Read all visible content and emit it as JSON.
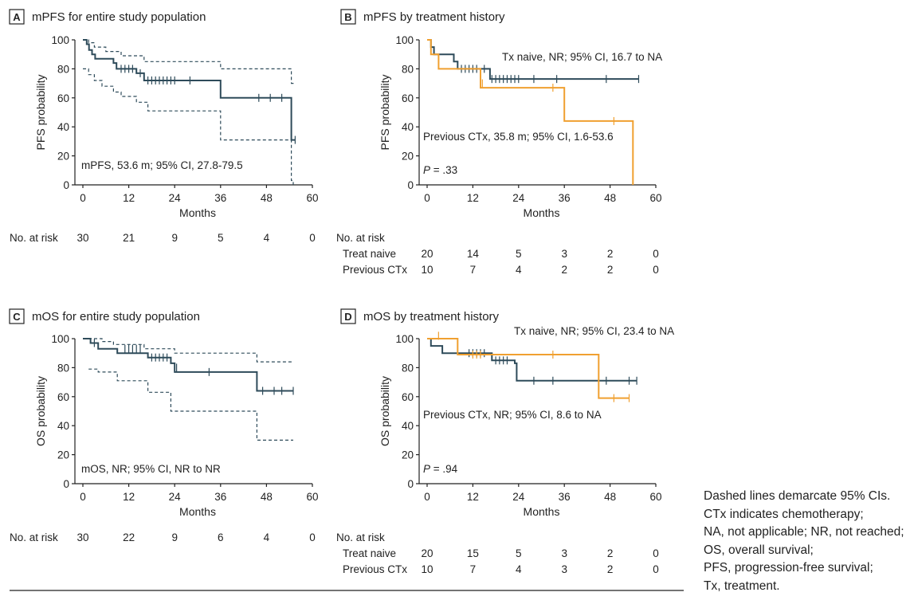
{
  "figure": {
    "footnote": [
      "Dashed lines demarcate 95% CIs.",
      "CTx indicates chemotherapy;",
      "NA, not applicable; NR, not reached;",
      "OS, overall survival;",
      "PFS, progression-free survival;",
      "Tx, treatment."
    ]
  },
  "chart_data": [
    {
      "type": "line",
      "panel": "A",
      "title": "mPFS for entire study population",
      "xlabel": "Months",
      "ylabel": "PFS probability",
      "xlim": [
        0,
        60
      ],
      "ylim": [
        0,
        100
      ],
      "xticks": [
        0,
        12,
        24,
        36,
        48,
        60
      ],
      "yticks": [
        0,
        20,
        40,
        60,
        80,
        100
      ],
      "annotations": [
        "mPFS, 53.6 m; 95% CI, 27.8-79.5"
      ],
      "series": [
        {
          "name": "Entire population",
          "color": "#2e4b5a",
          "dash": false,
          "steps": [
            [
              0,
              100
            ],
            [
              1,
              97
            ],
            [
              1.6,
              93
            ],
            [
              2.4,
              90
            ],
            [
              3.2,
              87
            ],
            [
              8,
              84
            ],
            [
              8.8,
              80
            ],
            [
              14,
              77
            ],
            [
              16,
              72
            ],
            [
              36,
              60
            ],
            [
              54.5,
              31
            ],
            [
              55.5,
              31
            ]
          ],
          "censor": [
            [
              10,
              80
            ],
            [
              11,
              80
            ],
            [
              12,
              80
            ],
            [
              13,
              80
            ],
            [
              15,
              77
            ],
            [
              17,
              72
            ],
            [
              18,
              72
            ],
            [
              19,
              72
            ],
            [
              20,
              72
            ],
            [
              21,
              72
            ],
            [
              22,
              72
            ],
            [
              23,
              72
            ],
            [
              24,
              72
            ],
            [
              28,
              72
            ],
            [
              46,
              60
            ],
            [
              49,
              60
            ],
            [
              52,
              60
            ],
            [
              55.5,
              31
            ]
          ]
        },
        {
          "name": "Upper 95% CI",
          "color": "#2e4b5a",
          "dash": true,
          "steps": [
            [
              0,
              100
            ],
            [
              1.5,
              98
            ],
            [
              3,
              95
            ],
            [
              6,
              92
            ],
            [
              10,
              89
            ],
            [
              16,
              85
            ],
            [
              36,
              80
            ],
            [
              54,
              80
            ],
            [
              54.5,
              70
            ],
            [
              55.5,
              70
            ]
          ],
          "censor": []
        },
        {
          "name": "Lower 95% CI",
          "color": "#2e4b5a",
          "dash": true,
          "steps": [
            [
              0,
              80
            ],
            [
              1.5,
              76
            ],
            [
              3,
              72
            ],
            [
              5,
              68
            ],
            [
              8,
              64
            ],
            [
              10,
              61
            ],
            [
              14,
              57
            ],
            [
              17,
              51
            ],
            [
              36,
              31
            ],
            [
              54,
              31
            ],
            [
              54.5,
              3
            ],
            [
              55,
              0
            ]
          ],
          "censor": []
        }
      ],
      "risk_table": {
        "title": "No. at risk",
        "rows": [
          {
            "label": "",
            "values": [
              "30",
              "21",
              "9",
              "5",
              "4",
              "0"
            ]
          }
        ]
      }
    },
    {
      "type": "line",
      "panel": "B",
      "title": "mPFS by treatment history",
      "xlabel": "Months",
      "ylabel": "PFS probability",
      "xlim": [
        0,
        60
      ],
      "ylim": [
        0,
        100
      ],
      "xticks": [
        0,
        12,
        24,
        36,
        48,
        60
      ],
      "yticks": [
        0,
        20,
        40,
        60,
        80,
        100
      ],
      "annotations": [
        "Tx naive, NR; 95% CI, 16.7 to NA",
        "Previous CTx, 35.8 m; 95% CI, 1.6-53.6",
        "P = .33"
      ],
      "series": [
        {
          "name": "Tx naive",
          "color": "#2e4b5a",
          "dash": false,
          "steps": [
            [
              0,
              100
            ],
            [
              1,
              95
            ],
            [
              1.8,
              90
            ],
            [
              7,
              85
            ],
            [
              8,
              80
            ],
            [
              16.5,
              73
            ],
            [
              55.5,
              73
            ]
          ],
          "censor": [
            [
              9,
              80
            ],
            [
              10,
              80
            ],
            [
              11,
              80
            ],
            [
              12,
              80
            ],
            [
              13,
              80
            ],
            [
              15,
              80
            ],
            [
              17,
              73
            ],
            [
              18,
              73
            ],
            [
              19,
              73
            ],
            [
              20,
              73
            ],
            [
              21,
              73
            ],
            [
              22,
              73
            ],
            [
              23,
              73
            ],
            [
              24,
              73
            ],
            [
              28,
              73
            ],
            [
              34,
              73
            ],
            [
              47,
              73
            ],
            [
              55.5,
              73
            ]
          ]
        },
        {
          "name": "Previous CTx",
          "color": "#f0a030",
          "dash": false,
          "steps": [
            [
              0,
              100
            ],
            [
              1,
              90
            ],
            [
              3,
              80
            ],
            [
              14,
              67
            ],
            [
              36,
              44
            ],
            [
              54,
              0
            ]
          ],
          "censor": [
            [
              14.5,
              70
            ],
            [
              33,
              67
            ],
            [
              49,
              44
            ]
          ]
        }
      ],
      "risk_table": {
        "title": "No. at risk",
        "rows": [
          {
            "label": "Treat naive",
            "values": [
              "20",
              "14",
              "5",
              "3",
              "2",
              "0"
            ]
          },
          {
            "label": "Previous CTx",
            "values": [
              "10",
              "7",
              "4",
              "2",
              "2",
              "0"
            ]
          }
        ]
      }
    },
    {
      "type": "line",
      "panel": "C",
      "title": "mOS for entire study population",
      "xlabel": "Months",
      "ylabel": "OS probability",
      "xlim": [
        0,
        60
      ],
      "ylim": [
        0,
        100
      ],
      "xticks": [
        0,
        12,
        24,
        36,
        48,
        60
      ],
      "yticks": [
        0,
        20,
        40,
        60,
        80,
        100
      ],
      "annotations": [
        "mOS, NR; 95% CI, NR to NR"
      ],
      "series": [
        {
          "name": "Entire population",
          "color": "#2e4b5a",
          "dash": false,
          "steps": [
            [
              0,
              100
            ],
            [
              2,
              97
            ],
            [
              4,
              93
            ],
            [
              9,
              90
            ],
            [
              17,
              87
            ],
            [
              23,
              83
            ],
            [
              24,
              77
            ],
            [
              45,
              77
            ],
            [
              45.5,
              64
            ],
            [
              55,
              64
            ]
          ],
          "censor": [
            [
              3,
              97
            ],
            [
              11,
              93
            ],
            [
              12,
              93
            ],
            [
              13,
              93
            ],
            [
              14,
              93
            ],
            [
              15,
              93
            ],
            [
              18,
              87
            ],
            [
              19,
              87
            ],
            [
              20,
              87
            ],
            [
              21,
              87
            ],
            [
              22,
              87
            ],
            [
              24.5,
              80
            ],
            [
              33,
              77
            ],
            [
              47,
              64
            ],
            [
              50,
              64
            ],
            [
              52,
              64
            ],
            [
              55,
              64
            ]
          ]
        },
        {
          "name": "Upper 95% CI",
          "color": "#2e4b5a",
          "dash": true,
          "steps": [
            [
              0,
              100
            ],
            [
              5,
              98
            ],
            [
              8,
              96
            ],
            [
              16,
              93
            ],
            [
              24,
              90
            ],
            [
              45,
              90
            ],
            [
              45.5,
              84
            ],
            [
              55,
              84
            ]
          ],
          "censor": []
        },
        {
          "name": "Lower 95% CI",
          "color": "#2e4b5a",
          "dash": true,
          "steps": [
            [
              1.5,
              79
            ],
            [
              4,
              77
            ],
            [
              9,
              71
            ],
            [
              17,
              63
            ],
            [
              23,
              50
            ],
            [
              45,
              50
            ],
            [
              45.5,
              30
            ],
            [
              55,
              30
            ]
          ],
          "censor": []
        }
      ],
      "risk_table": {
        "title": "No. at risk",
        "rows": [
          {
            "label": "",
            "values": [
              "30",
              "22",
              "9",
              "6",
              "4",
              "0"
            ]
          }
        ]
      }
    },
    {
      "type": "line",
      "panel": "D",
      "title": "mOS by treatment history",
      "xlabel": "Months",
      "ylabel": "OS probability",
      "xlim": [
        0,
        60
      ],
      "ylim": [
        0,
        100
      ],
      "xticks": [
        0,
        12,
        24,
        36,
        48,
        60
      ],
      "yticks": [
        0,
        20,
        40,
        60,
        80,
        100
      ],
      "annotations": [
        "Tx naive, NR; 95% CI, 23.4 to NA",
        "Previous CTx, NR; 95% CI, 8.6 to NA",
        "P = .94"
      ],
      "series": [
        {
          "name": "Tx naive",
          "color": "#2e4b5a",
          "dash": false,
          "steps": [
            [
              0,
              100
            ],
            [
              1,
              95
            ],
            [
              4,
              90
            ],
            [
              17,
              85
            ],
            [
              23,
              83
            ],
            [
              23.5,
              71
            ],
            [
              55,
              71
            ]
          ],
          "censor": [
            [
              11,
              90
            ],
            [
              12,
              90
            ],
            [
              13,
              90
            ],
            [
              14,
              90
            ],
            [
              15,
              90
            ],
            [
              18,
              85
            ],
            [
              19,
              85
            ],
            [
              20,
              85
            ],
            [
              21,
              85
            ],
            [
              28,
              71
            ],
            [
              33,
              71
            ],
            [
              47,
              71
            ],
            [
              53,
              71
            ],
            [
              55,
              71
            ]
          ]
        },
        {
          "name": "Previous CTx",
          "color": "#f0a030",
          "dash": false,
          "steps": [
            [
              0,
              100
            ],
            [
              8,
              89
            ],
            [
              45,
              59
            ],
            [
              53,
              59
            ]
          ],
          "censor": [
            [
              3,
              102
            ],
            [
              12,
              89
            ],
            [
              13,
              89
            ],
            [
              14,
              89
            ],
            [
              33,
              89
            ],
            [
              49,
              59
            ],
            [
              53,
              59
            ]
          ]
        }
      ],
      "risk_table": {
        "title": "No. at risk",
        "rows": [
          {
            "label": "Treat naive",
            "values": [
              "20",
              "15",
              "5",
              "3",
              "2",
              "0"
            ]
          },
          {
            "label": "Previous CTx",
            "values": [
              "10",
              "7",
              "4",
              "3",
              "2",
              "0"
            ]
          }
        ]
      }
    }
  ]
}
